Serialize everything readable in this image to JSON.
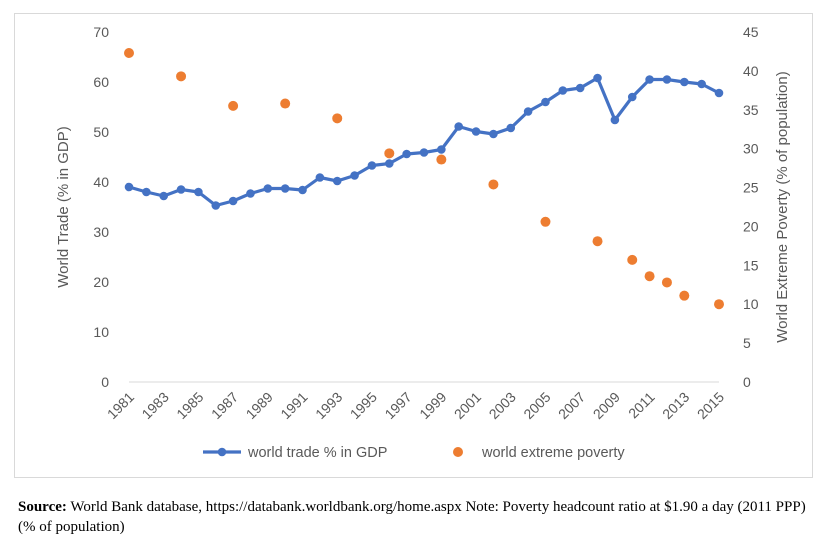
{
  "chart_data": {
    "type": "line",
    "xlabel": "",
    "x_tick_labels": [
      "1981",
      "1983",
      "1985",
      "1987",
      "1989",
      "1991",
      "1993",
      "1995",
      "1997",
      "1999",
      "2001",
      "2003",
      "2005",
      "2007",
      "2009",
      "2011",
      "2013",
      "2015"
    ],
    "xlim": [
      1981,
      2015
    ],
    "y_left": {
      "label": "World Trade (% in GDP)",
      "ylim": [
        0,
        70
      ],
      "ticks": [
        "0",
        "10",
        "20",
        "30",
        "40",
        "50",
        "60",
        "70"
      ]
    },
    "y_right": {
      "label": "World Extreme Poverty (% of population)",
      "ylim": [
        0,
        45
      ],
      "ticks": [
        "0",
        "5",
        "10",
        "15",
        "20",
        "25",
        "30",
        "35",
        "40",
        "45"
      ]
    },
    "series": [
      {
        "name": "world trade % in GDP",
        "kind": "line-with-markers",
        "axis": "left",
        "color": "#4472c4",
        "x": [
          1981,
          1982,
          1983,
          1984,
          1985,
          1986,
          1987,
          1988,
          1989,
          1990,
          1991,
          1992,
          1993,
          1994,
          1995,
          1996,
          1997,
          1998,
          1999,
          2000,
          2001,
          2002,
          2003,
          2004,
          2005,
          2006,
          2007,
          2008,
          2009,
          2010,
          2011,
          2012,
          2013,
          2014,
          2015
        ],
        "values": [
          39.0,
          38.0,
          37.2,
          38.5,
          38.0,
          35.3,
          36.2,
          37.7,
          38.7,
          38.7,
          38.4,
          40.9,
          40.2,
          41.3,
          43.3,
          43.7,
          45.6,
          45.9,
          46.5,
          51.1,
          50.1,
          49.6,
          50.8,
          54.1,
          56.0,
          58.3,
          58.8,
          60.8,
          52.4,
          57.0,
          60.5,
          60.5,
          60.0,
          59.6,
          57.8
        ]
      },
      {
        "name": "world extreme poverty",
        "kind": "scatter",
        "axis": "right",
        "color": "#ed7d31",
        "x": [
          1981,
          1984,
          1987,
          1990,
          1993,
          1996,
          1999,
          2002,
          2005,
          2008,
          2010,
          2011,
          2012,
          2013,
          2015
        ],
        "values": [
          42.3,
          39.3,
          35.5,
          35.8,
          33.9,
          29.4,
          28.6,
          25.4,
          20.6,
          18.1,
          15.7,
          13.6,
          12.8,
          11.1,
          10.0
        ]
      }
    ],
    "legend_position": "bottom",
    "grid": false
  },
  "source": {
    "label": "Source:",
    "text": " World Bank database, https://databank.worldbank.org/home.aspx Note: Poverty headcount ratio at $1.90 a day (2011 PPP) (% of population)"
  }
}
